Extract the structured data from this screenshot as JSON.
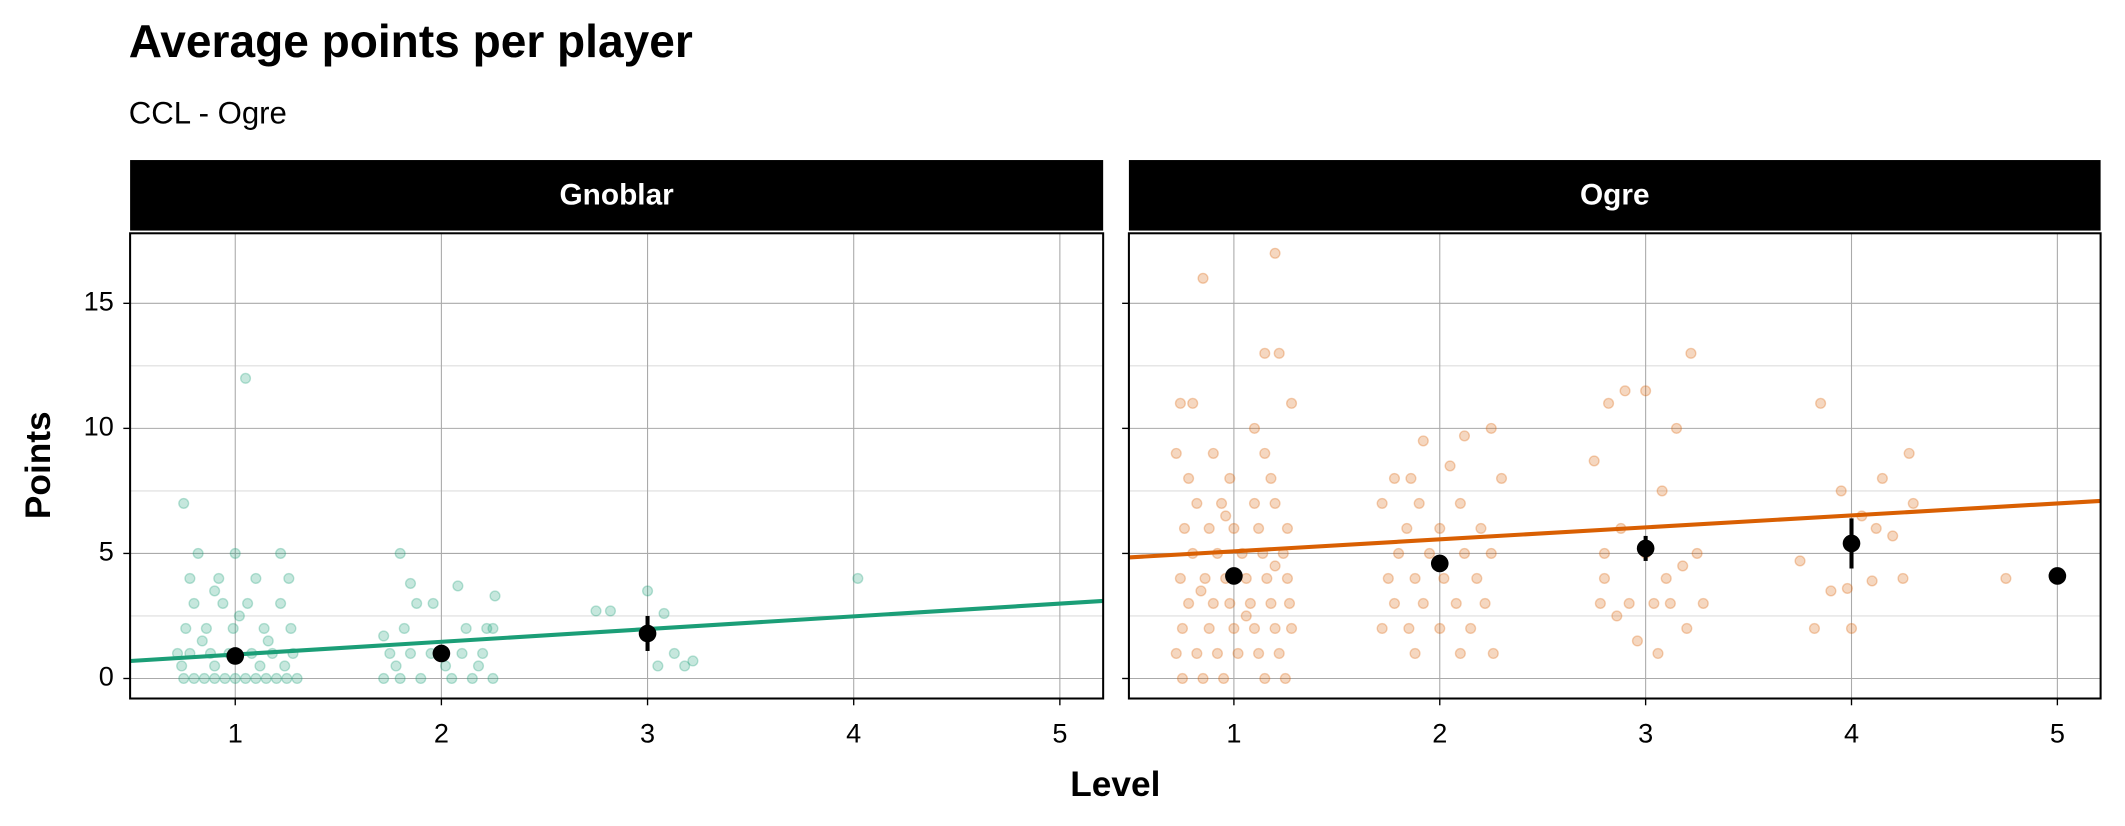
{
  "title": "Average points per player",
  "subtitle": "CCL - Ogre",
  "x_label": "Level",
  "y_label": "Points",
  "chart_data": [
    {
      "type": "scatter",
      "facet_title": "Gnoblar",
      "color": "#1b9e77",
      "xlim": [
        0.49,
        5.21
      ],
      "ylim": [
        -0.8,
        17.8
      ],
      "xticks": [
        1,
        2,
        3,
        4,
        5
      ],
      "yticks": [
        0,
        5,
        10,
        15
      ],
      "y_minor_ticks": [
        2.5,
        7.5,
        12.5
      ],
      "grid": true,
      "points": {
        "x": [
          0.75,
          0.8,
          0.85,
          0.9,
          0.95,
          1.0,
          1.05,
          1.1,
          1.15,
          1.2,
          1.25,
          1.3,
          0.72,
          0.78,
          0.88,
          0.97,
          1.08,
          1.18,
          1.28,
          0.74,
          0.9,
          1.12,
          1.24,
          0.76,
          0.86,
          0.99,
          1.14,
          1.27,
          0.8,
          0.94,
          1.06,
          1.22,
          0.78,
          0.92,
          1.1,
          1.26,
          0.82,
          1.0,
          1.22,
          0.75,
          1.05,
          0.84,
          1.16,
          1.02,
          0.9,
          1.72,
          1.8,
          1.9,
          2.05,
          2.15,
          2.25,
          1.75,
          1.85,
          1.95,
          2.1,
          2.2,
          1.78,
          2.02,
          2.18,
          1.82,
          2.12,
          2.25,
          1.88,
          1.96,
          2.26,
          1.85,
          1.8,
          2.08,
          1.72,
          2.22,
          2.75,
          2.82,
          3.0,
          3.08,
          3.05,
          3.13,
          3.18,
          3.22,
          4.02
        ],
        "y": [
          0,
          0,
          0,
          0,
          0,
          0,
          0,
          0,
          0,
          0,
          0,
          0,
          1,
          1,
          1,
          1,
          1,
          1,
          1,
          0.5,
          0.5,
          0.5,
          0.5,
          2,
          2,
          2,
          2,
          2,
          3,
          3,
          3,
          3,
          4,
          4,
          4,
          4,
          5,
          5,
          5,
          7,
          12,
          1.5,
          1.5,
          2.5,
          3.5,
          0,
          0,
          0,
          0,
          0,
          0,
          1,
          1,
          1,
          1,
          1,
          0.5,
          0.5,
          0.5,
          2,
          2,
          2,
          3,
          3,
          3.3,
          3.8,
          5,
          3.7,
          1.7,
          2,
          2.7,
          2.7,
          3.5,
          2.6,
          0.5,
          1.0,
          0.5,
          0.7,
          4
        ]
      },
      "means": {
        "x": [
          1,
          2,
          3
        ],
        "y": [
          0.9,
          1.0,
          1.8
        ],
        "error": [
          0.1,
          0.2,
          0.7
        ]
      },
      "trend": {
        "x": [
          0.49,
          5.21
        ],
        "y": [
          0.7,
          3.1
        ]
      }
    },
    {
      "type": "scatter",
      "facet_title": "Ogre",
      "color": "#d95f02",
      "xlim": [
        0.49,
        5.21
      ],
      "ylim": [
        -0.8,
        17.8
      ],
      "xticks": [
        1,
        2,
        3,
        4,
        5
      ],
      "yticks": [
        0,
        5,
        10,
        15
      ],
      "y_minor_ticks": [
        2.5,
        7.5,
        12.5
      ],
      "grid": true,
      "points": {
        "x": [
          0.75,
          0.85,
          0.95,
          1.15,
          1.25,
          0.72,
          0.82,
          0.92,
          1.02,
          1.12,
          1.22,
          0.75,
          0.88,
          1.0,
          1.1,
          1.2,
          1.28,
          0.78,
          0.9,
          0.98,
          1.08,
          1.18,
          1.27,
          0.74,
          0.86,
          0.96,
          1.06,
          1.16,
          1.26,
          0.8,
          0.92,
          1.04,
          1.14,
          1.24,
          0.76,
          0.88,
          1.0,
          1.12,
          1.26,
          0.82,
          0.94,
          1.1,
          1.2,
          0.78,
          0.98,
          1.18,
          0.72,
          0.9,
          1.15,
          0.74,
          0.8,
          1.28,
          0.85,
          1.15,
          1.22,
          1.2,
          0.84,
          1.06,
          1.2,
          0.96,
          1.1,
          1.72,
          1.85,
          2.0,
          2.15,
          1.78,
          1.92,
          2.08,
          2.22,
          1.75,
          1.88,
          2.02,
          2.18,
          1.8,
          1.95,
          2.12,
          2.25,
          1.84,
          2.0,
          2.2,
          1.72,
          1.9,
          2.1,
          1.78,
          1.86,
          2.05,
          1.92,
          2.25,
          2.12,
          1.88,
          2.1,
          2.26,
          2.3,
          2.75,
          2.82,
          2.9,
          3.0,
          3.15,
          3.22,
          2.8,
          2.88,
          3.0,
          3.08,
          3.18,
          3.25,
          2.78,
          2.92,
          3.04,
          3.12,
          3.2,
          2.86,
          2.96,
          3.06,
          3.1,
          2.8,
          3.28,
          3.75,
          3.82,
          3.85,
          3.9,
          3.98,
          4.0,
          4.05,
          4.1,
          4.12,
          4.15,
          4.2,
          4.25,
          4.28,
          4.3,
          3.95,
          4.75
        ],
        "y": [
          0,
          0,
          0,
          0,
          0,
          1,
          1,
          1,
          1,
          1,
          1,
          2,
          2,
          2,
          2,
          2,
          2,
          3,
          3,
          3,
          3,
          3,
          3,
          4,
          4,
          4,
          4,
          4,
          4,
          5,
          5,
          5,
          5,
          5,
          6,
          6,
          6,
          6,
          6,
          7,
          7,
          7,
          7,
          8,
          8,
          8,
          9,
          9,
          9,
          11,
          11,
          11,
          16,
          13,
          13,
          17,
          3.5,
          2.5,
          4.5,
          6.5,
          10,
          2,
          2,
          2,
          2,
          3,
          3,
          3,
          3,
          4,
          4,
          4,
          4,
          5,
          5,
          5,
          5,
          6,
          6,
          6,
          7,
          7,
          7,
          8,
          8,
          8.5,
          9.5,
          10,
          9.7,
          1,
          1,
          1,
          8,
          8.7,
          11,
          11.5,
          11.5,
          10,
          13,
          5,
          6,
          5,
          7.5,
          4.5,
          5,
          3,
          3,
          3,
          3,
          2,
          2.5,
          1.5,
          1,
          4,
          4,
          3,
          4.7,
          2,
          11,
          3.5,
          3.6,
          2,
          6.5,
          3.9,
          6,
          8,
          5.7,
          4,
          9,
          7,
          7.5,
          4
        ]
      },
      "means": {
        "x": [
          1,
          2,
          3,
          4,
          5
        ],
        "y": [
          4.1,
          4.6,
          5.2,
          5.4,
          4.1
        ],
        "error": [
          0.3,
          0.3,
          0.5,
          1.0,
          null
        ]
      },
      "trend": {
        "x": [
          0.49,
          5.21
        ],
        "y": [
          4.84,
          7.1
        ]
      }
    }
  ]
}
